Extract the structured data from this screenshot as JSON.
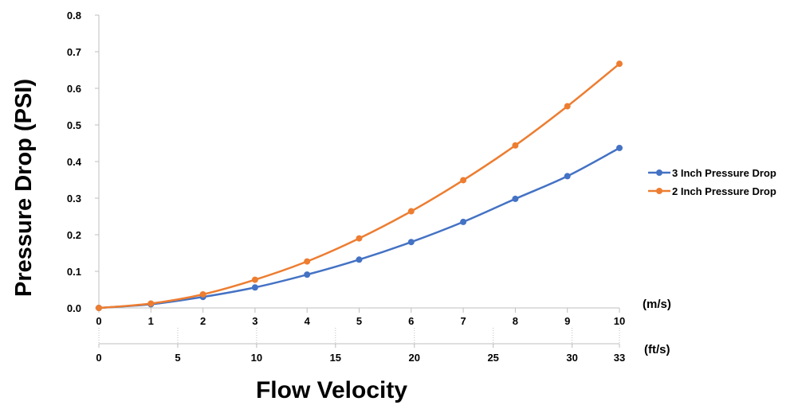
{
  "chart_data": {
    "type": "line",
    "title": "",
    "ylabel": "Pressure Drop (PSI)",
    "xlabel": "Flow Velocity",
    "ylim": [
      0,
      0.8
    ],
    "y_ticks": [
      "0.0",
      "0.1",
      "0.2",
      "0.3",
      "0.4",
      "0.5",
      "0.6",
      "0.7",
      "0.8"
    ],
    "x_primary": {
      "unit": "(m/s)",
      "range": [
        0,
        10
      ],
      "ticks": [
        0,
        1,
        2,
        3,
        4,
        5,
        6,
        7,
        8,
        9,
        10
      ]
    },
    "x_secondary": {
      "unit": "(ft/s)",
      "range": [
        0,
        33
      ],
      "ticks": [
        0,
        5,
        10,
        15,
        20,
        25,
        30,
        33
      ]
    },
    "x": [
      0,
      1,
      2,
      3,
      4,
      5,
      6,
      7,
      8,
      9,
      10
    ],
    "series": [
      {
        "name": "3 Inch Pressure Drop",
        "color": "#4472C4",
        "values": [
          0.0,
          0.01,
          0.03,
          0.056,
          0.091,
          0.132,
          0.18,
          0.235,
          0.298,
          0.36,
          0.437
        ]
      },
      {
        "name": "2 Inch Pressure Drop",
        "color": "#ED7D31",
        "values": [
          0.0,
          0.012,
          0.037,
          0.077,
          0.127,
          0.19,
          0.264,
          0.349,
          0.444,
          0.551,
          0.667
        ]
      }
    ],
    "grid": false,
    "legend_position": "right"
  }
}
